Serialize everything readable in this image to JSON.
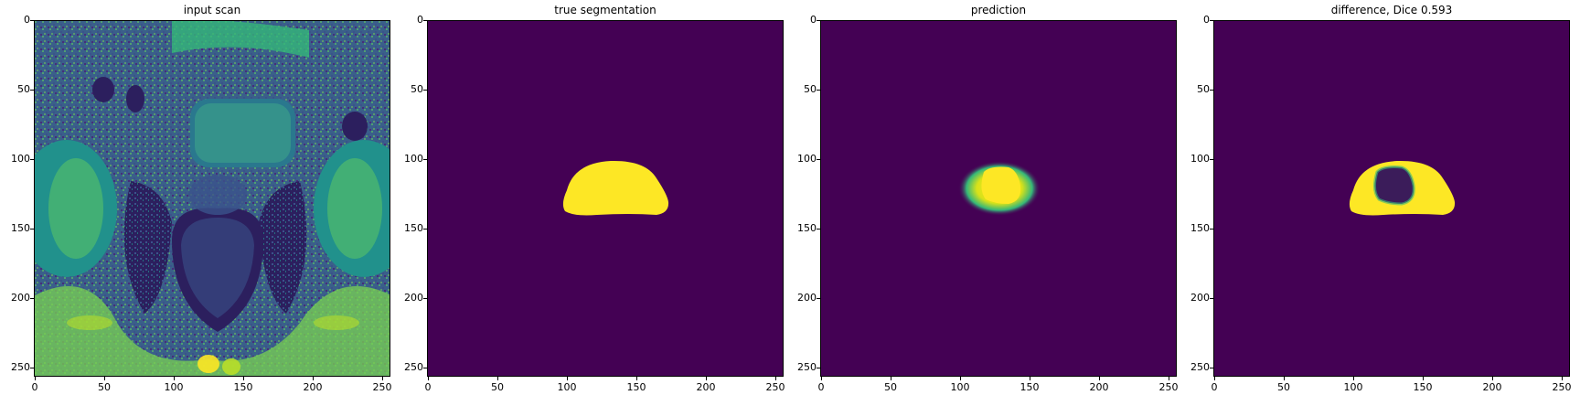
{
  "panels": [
    {
      "title": "input scan"
    },
    {
      "title": "true segmentation"
    },
    {
      "title": "prediction"
    },
    {
      "title": "difference, Dice 0.593"
    }
  ],
  "axis": {
    "x_ticks": [
      "0",
      "50",
      "100",
      "150",
      "200",
      "250"
    ],
    "y_ticks": [
      "0",
      "50",
      "100",
      "150",
      "200",
      "250"
    ],
    "image_size": [
      256,
      256
    ]
  },
  "colormap": {
    "name": "viridis",
    "low": "#440154",
    "high": "#fde725",
    "mid": "#21918c"
  }
}
